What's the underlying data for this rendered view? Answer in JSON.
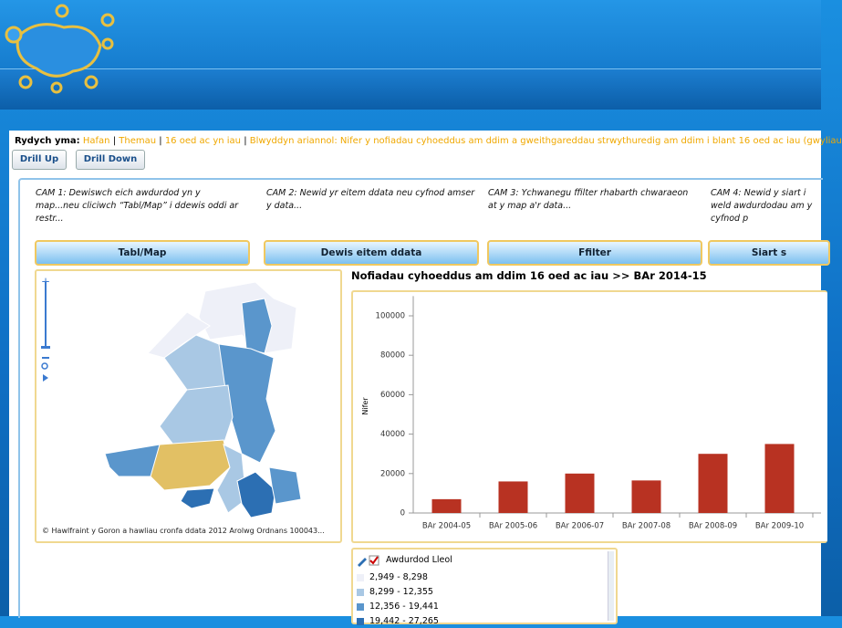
{
  "breadcrumb": {
    "label": "Rydych yma:",
    "separator": "|",
    "items": [
      "Hafan",
      "Themau",
      "16 oed ac yn iau",
      "Blwyddyn ariannol: Nifer y nofiadau cyhoeddus am ddim a gweithgareddau strwythuredig am ddim i blant 16 oed ac iau (gwyliau"
    ]
  },
  "buttons": [
    "Drill Up",
    "Drill Down"
  ],
  "steps": [
    "CAM 1: Dewiswch eich awdurdod yn y map...neu cliciwch “Tabl/Map” i ddewis oddi ar restr...",
    "CAM 2: Newid yr eitem ddata neu cyfnod amser y data...",
    "CAM 3: Ychwanegu ffilter rhabarth chwaraeon at y map a'r data...",
    "CAM 4: Newid y siart i weld awdurdodau am y cyfnod p"
  ],
  "tabs": [
    "Tabl/Map",
    "Dewis eitem ddata",
    "Ffilter",
    "Siart s"
  ],
  "map": {
    "copyright": "© Hawlfraint y Goron a hawliau cronfa ddata 2012 Arolwg Ordnans 100043..."
  },
  "chart_data": {
    "type": "bar",
    "title": "Nofiadau cyhoeddus am ddim 16 oed ac iau >>  BAr 2014-15",
    "y_label": "Nifer",
    "categories": [
      "BAr 2004-05",
      "BAr 2005-06",
      "BAr 2006-07",
      "BAr 2007-08",
      "BAr 2008-09",
      "BAr 2009-10"
    ],
    "values": [
      7000,
      16000,
      20000,
      16500,
      30000,
      35000
    ],
    "color": "#b83222",
    "ylim": [
      0,
      110000
    ],
    "yticks": [
      0,
      20000,
      40000,
      60000,
      80000,
      100000
    ],
    "grid": false
  },
  "legend": {
    "title": "Awdurdod Lleol",
    "items": [
      {
        "label": "2,949 - 8,298",
        "color": "#eef0f8"
      },
      {
        "label": "8,299 - 12,355",
        "color": "#a9c8e4"
      },
      {
        "label": "12,356 - 19,441",
        "color": "#5a96cc"
      },
      {
        "label": "19,442 - 27,265",
        "color": "#2c6fb3"
      }
    ]
  }
}
